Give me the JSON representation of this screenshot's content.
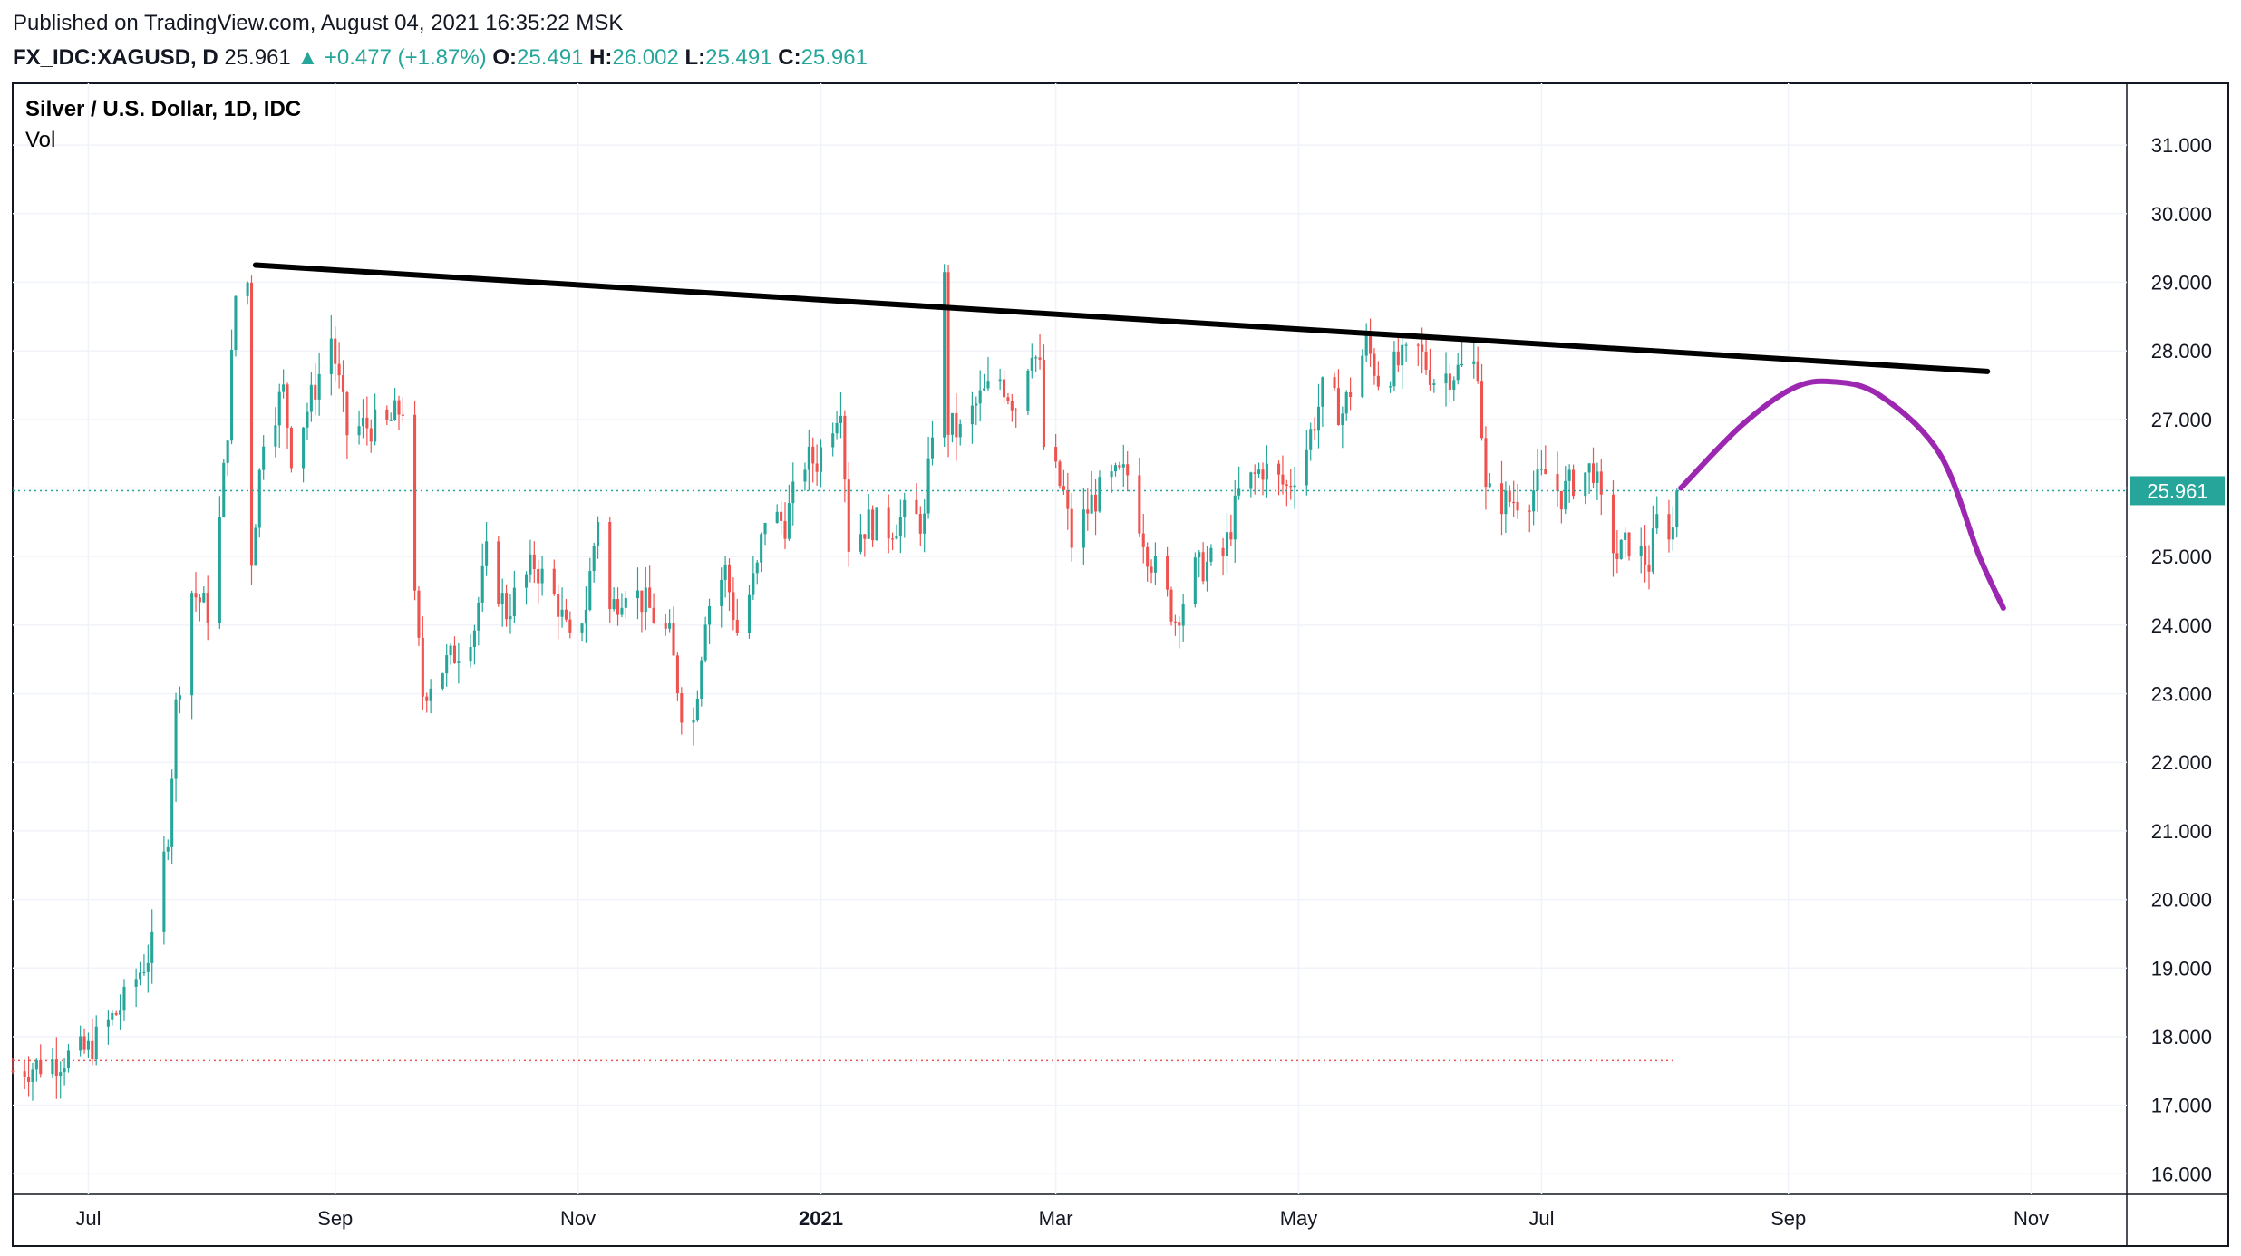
{
  "header": {
    "published": "Published on TradingView.com, August 04, 2021 16:35:22 MSK",
    "symbol": "FX_IDC:XAGUSD, D",
    "last": "25.961",
    "change": "+0.477 (+1.87%)",
    "o_label": "O:",
    "o_value": "25.491",
    "h_label": "H:",
    "h_value": "26.002",
    "l_label": "L:",
    "l_value": "25.491",
    "c_label": "C:",
    "c_value": "25.961"
  },
  "legend": {
    "title": "Silver / U.S. Dollar, 1D, IDC",
    "vol": "Vol"
  },
  "colors": {
    "up": "#26a69a",
    "down": "#ef5350",
    "grid": "#f0f3fa",
    "trendline": "#000000",
    "projection": "#9c27b0",
    "price_line": "#26a69a"
  },
  "chart_data": {
    "type": "candlestick",
    "y_ticks": [
      "31.000",
      "30.000",
      "29.000",
      "28.000",
      "27.000",
      "26.000",
      "25.000",
      "24.000",
      "23.000",
      "22.000",
      "21.000",
      "20.000",
      "19.000",
      "18.000",
      "17.000",
      "16.000"
    ],
    "y_tick_values": [
      31,
      30,
      29,
      28,
      27,
      26,
      25,
      24,
      23,
      22,
      21,
      20,
      19,
      18,
      17,
      16
    ],
    "ylim": [
      15.7,
      31.9
    ],
    "x_ticks": [
      {
        "label": "Jul",
        "date": "2020-07-01"
      },
      {
        "label": "Sep",
        "date": "2020-09-01"
      },
      {
        "label": "Nov",
        "date": "2020-11-01"
      },
      {
        "label": "2021",
        "date": "2021-01-01"
      },
      {
        "label": "Mar",
        "date": "2021-03-01"
      },
      {
        "label": "May",
        "date": "2021-05-01"
      },
      {
        "label": "Jul",
        "date": "2021-07-01"
      },
      {
        "label": "Sep",
        "date": "2021-09-01"
      },
      {
        "label": "Nov",
        "date": "2021-11-01"
      }
    ],
    "xlim": [
      "2020-06-12",
      "2021-11-25"
    ],
    "last_price": 25.961,
    "reference_price": 17.65,
    "price_path": [
      [
        "2020-06-12",
        17.5
      ],
      [
        "2020-06-20",
        17.6
      ],
      [
        "2020-07-01",
        17.8
      ],
      [
        "2020-07-10",
        18.5
      ],
      [
        "2020-07-17",
        19.3
      ],
      [
        "2020-07-21",
        21.0
      ],
      [
        "2020-07-23",
        22.8
      ],
      [
        "2020-07-27",
        24.5
      ],
      [
        "2020-07-31",
        24.2
      ],
      [
        "2020-08-03",
        25.5
      ],
      [
        "2020-08-05",
        26.9
      ],
      [
        "2020-08-07",
        28.8
      ],
      [
        "2020-08-10",
        29.0
      ],
      [
        "2020-08-11",
        25.0
      ],
      [
        "2020-08-14",
        26.8
      ],
      [
        "2020-08-19",
        27.4
      ],
      [
        "2020-08-21",
        26.5
      ],
      [
        "2020-08-26",
        27.3
      ],
      [
        "2020-08-31",
        28.2
      ],
      [
        "2020-09-04",
        26.8
      ],
      [
        "2020-09-08",
        26.9
      ],
      [
        "2020-09-14",
        26.9
      ],
      [
        "2020-09-18",
        27.2
      ],
      [
        "2020-09-21",
        24.3
      ],
      [
        "2020-09-23",
        23.0
      ],
      [
        "2020-09-25",
        23.2
      ],
      [
        "2020-09-30",
        23.5
      ],
      [
        "2020-10-06",
        24.0
      ],
      [
        "2020-10-09",
        25.0
      ],
      [
        "2020-10-14",
        24.2
      ],
      [
        "2020-10-19",
        24.7
      ],
      [
        "2020-10-21",
        24.9
      ],
      [
        "2020-10-27",
        24.3
      ],
      [
        "2020-10-30",
        23.7
      ],
      [
        "2020-11-03",
        24.3
      ],
      [
        "2020-11-06",
        25.6
      ],
      [
        "2020-11-09",
        24.2
      ],
      [
        "2020-11-13",
        24.6
      ],
      [
        "2020-11-18",
        24.3
      ],
      [
        "2020-11-24",
        23.8
      ],
      [
        "2020-11-27",
        22.8
      ],
      [
        "2020-11-30",
        22.6
      ],
      [
        "2020-12-03",
        24.2
      ],
      [
        "2020-12-08",
        24.8
      ],
      [
        "2020-12-11",
        23.9
      ],
      [
        "2020-12-16",
        24.8
      ],
      [
        "2020-12-18",
        25.6
      ],
      [
        "2020-12-23",
        25.5
      ],
      [
        "2020-12-28",
        26.4
      ],
      [
        "2020-12-31",
        26.4
      ],
      [
        "2021-01-06",
        27.3
      ],
      [
        "2021-01-08",
        25.2
      ],
      [
        "2021-01-13",
        25.5
      ],
      [
        "2021-01-18",
        25.4
      ],
      [
        "2021-01-22",
        25.6
      ],
      [
        "2021-01-27",
        25.5
      ],
      [
        "2021-01-29",
        26.9
      ],
      [
        "2021-02-01",
        29.0
      ],
      [
        "2021-02-02",
        26.9
      ],
      [
        "2021-02-05",
        26.8
      ],
      [
        "2021-02-10",
        27.3
      ],
      [
        "2021-02-15",
        27.6
      ],
      [
        "2021-02-19",
        27.2
      ],
      [
        "2021-02-23",
        28.1
      ],
      [
        "2021-02-25",
        27.7
      ],
      [
        "2021-02-26",
        26.6
      ],
      [
        "2021-03-03",
        25.9
      ],
      [
        "2021-03-05",
        25.2
      ],
      [
        "2021-03-10",
        25.8
      ],
      [
        "2021-03-15",
        26.1
      ],
      [
        "2021-03-19",
        26.2
      ],
      [
        "2021-03-24",
        25.1
      ],
      [
        "2021-03-31",
        24.1
      ],
      [
        "2021-04-05",
        24.8
      ],
      [
        "2021-04-12",
        25.0
      ],
      [
        "2021-04-16",
        25.9
      ],
      [
        "2021-04-22",
        26.3
      ],
      [
        "2021-04-28",
        26.0
      ],
      [
        "2021-05-03",
        26.6
      ],
      [
        "2021-05-07",
        27.4
      ],
      [
        "2021-05-12",
        27.1
      ],
      [
        "2021-05-18",
        28.1
      ],
      [
        "2021-05-21",
        27.6
      ],
      [
        "2021-05-26",
        27.8
      ],
      [
        "2021-05-31",
        28.0
      ],
      [
        "2021-06-04",
        27.6
      ],
      [
        "2021-06-09",
        27.7
      ],
      [
        "2021-06-15",
        27.8
      ],
      [
        "2021-06-17",
        25.9
      ],
      [
        "2021-06-22",
        25.8
      ],
      [
        "2021-06-28",
        25.9
      ],
      [
        "2021-07-02",
        26.2
      ],
      [
        "2021-07-06",
        25.9
      ],
      [
        "2021-07-09",
        26.1
      ],
      [
        "2021-07-14",
        26.3
      ],
      [
        "2021-07-16",
        25.7
      ],
      [
        "2021-07-20",
        25.0
      ],
      [
        "2021-07-23",
        25.2
      ],
      [
        "2021-07-28",
        24.9
      ],
      [
        "2021-07-30",
        25.5
      ],
      [
        "2021-08-03",
        25.4
      ],
      [
        "2021-08-04",
        25.961
      ]
    ],
    "annotations": [
      {
        "type": "trendline",
        "points": [
          [
            "2020-08-12",
            29.25
          ],
          [
            "2021-10-21",
            27.7
          ]
        ],
        "color": "#000000"
      },
      {
        "type": "projection-curve",
        "points": [
          [
            "2021-08-05",
            26.0
          ],
          [
            "2021-08-20",
            26.9
          ],
          [
            "2021-09-02",
            27.45
          ],
          [
            "2021-09-12",
            27.55
          ],
          [
            "2021-09-24",
            27.35
          ],
          [
            "2021-10-09",
            26.5
          ],
          [
            "2021-10-19",
            25.0
          ],
          [
            "2021-10-25",
            24.25
          ]
        ],
        "color": "#9c27b0"
      }
    ]
  }
}
